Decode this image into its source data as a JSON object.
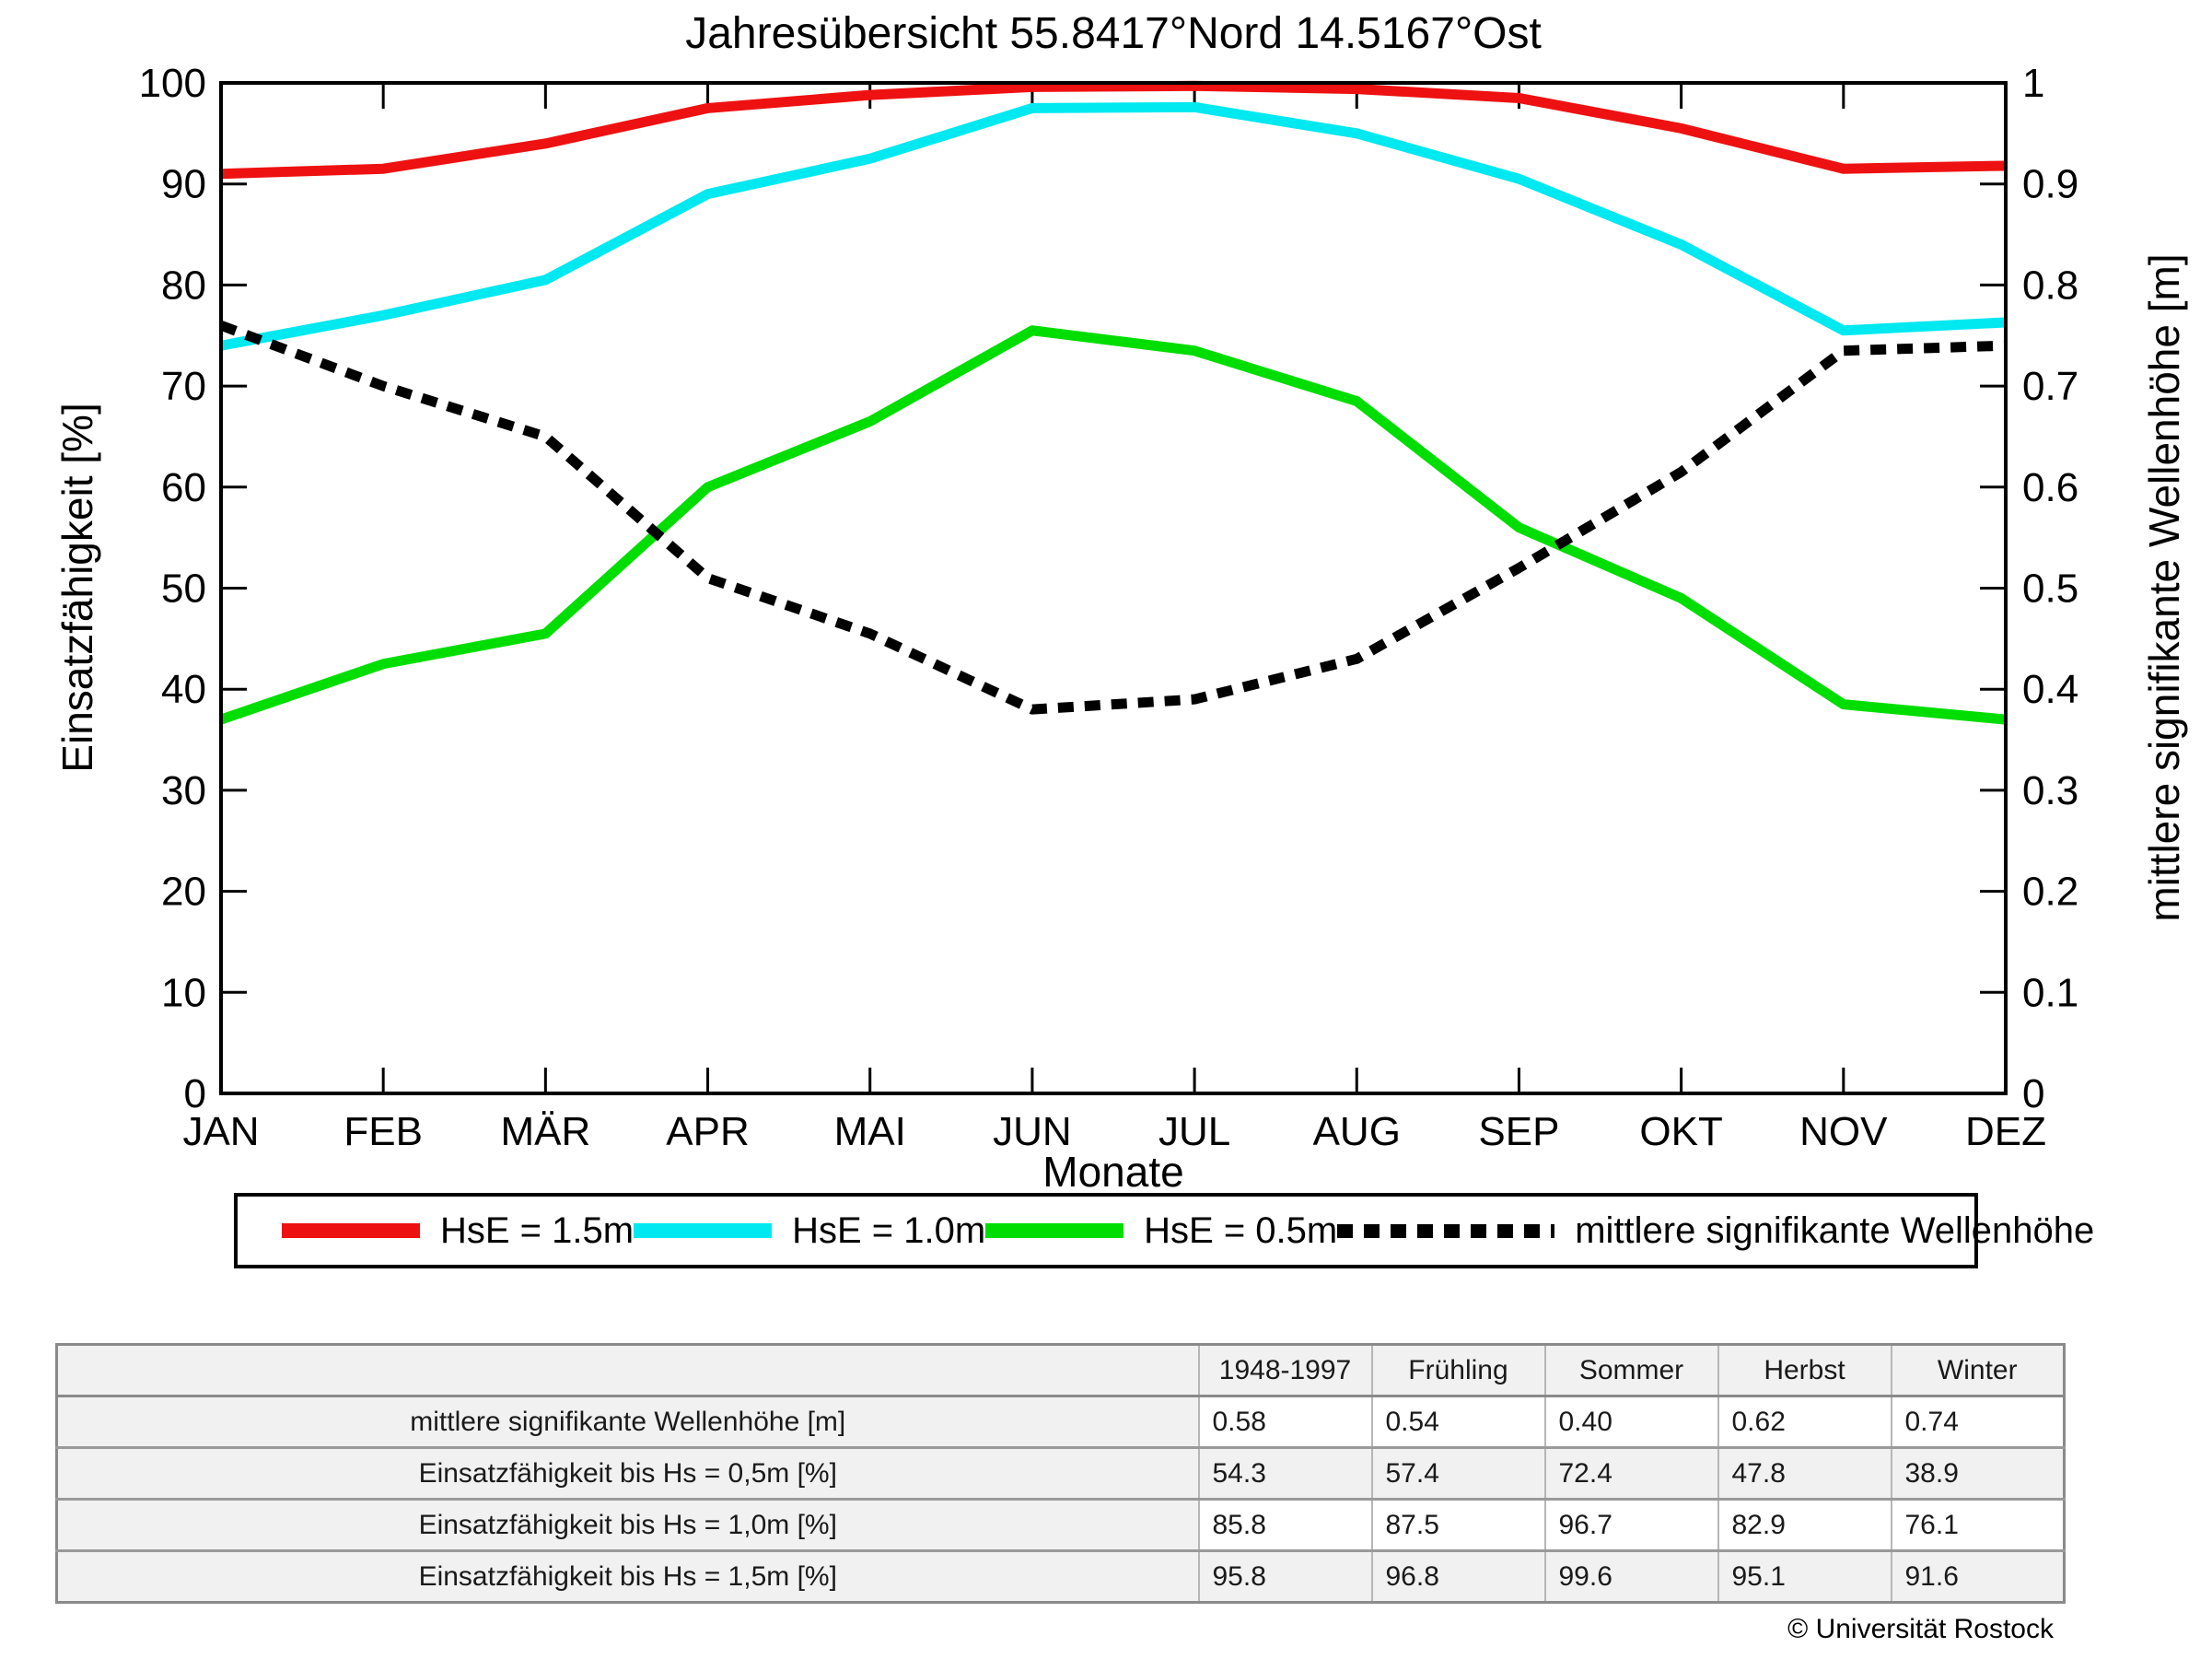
{
  "title": "Jahresübersicht  55.8417°Nord  14.5167°Ost",
  "chart_data": {
    "type": "line",
    "x_categories": [
      "JAN",
      "FEB",
      "MÄR",
      "APR",
      "MAI",
      "JUN",
      "JUL",
      "AUG",
      "SEP",
      "OKT",
      "NOV",
      "DEZ"
    ],
    "xlabel": "Monate",
    "ylabel_left": "Einsatzfähigkeit [%]",
    "ylabel_right": "mittlere signifikante Wellenhöhe [m]",
    "ylim_left": [
      0,
      100
    ],
    "ylim_right": [
      0,
      1
    ],
    "yticks_left": [
      0,
      10,
      20,
      30,
      40,
      50,
      60,
      70,
      80,
      90,
      100
    ],
    "yticks_right": [
      0,
      0.1,
      0.2,
      0.3,
      0.4,
      0.5,
      0.6,
      0.7,
      0.8,
      0.9,
      1
    ],
    "grid": false,
    "legend_position": "bottom",
    "series": [
      {
        "name": "HsE = 1.5m",
        "color": "#ee1111",
        "axis": "left",
        "style": "solid",
        "values": [
          91,
          91.5,
          94,
          97.5,
          98.8,
          99.6,
          99.7,
          99.4,
          98.5,
          95.5,
          91.5,
          91.8
        ]
      },
      {
        "name": "HsE = 1.0m",
        "color": "#00e8f0",
        "axis": "left",
        "style": "solid",
        "values": [
          74,
          77,
          80.5,
          89,
          92.5,
          97.5,
          97.6,
          95,
          90.5,
          84,
          75.5,
          76.3
        ]
      },
      {
        "name": "HsE = 0.5m",
        "color": "#00dd00",
        "axis": "left",
        "style": "solid",
        "values": [
          37,
          42.5,
          45.5,
          60,
          66.5,
          75.5,
          73.5,
          68.5,
          56,
          49,
          38.5,
          37
        ]
      },
      {
        "name": "mittlere signifikante Wellenhöhe",
        "color": "#000000",
        "axis": "right",
        "style": "dotted",
        "values": [
          0.76,
          0.7,
          0.65,
          0.51,
          0.455,
          0.38,
          0.39,
          0.43,
          0.52,
          0.615,
          0.735,
          0.74
        ]
      }
    ]
  },
  "table": {
    "col_headers": [
      "",
      "1948-1997",
      "Frühling",
      "Sommer",
      "Herbst",
      "Winter"
    ],
    "rows": [
      {
        "label": "mittlere signifikante Wellenhöhe [m]",
        "values": [
          "0.58",
          "0.54",
          "0.40",
          "0.62",
          "0.74"
        ]
      },
      {
        "label": "Einsatzfähigkeit bis Hs = 0,5m [%]",
        "values": [
          "54.3",
          "57.4",
          "72.4",
          "47.8",
          "38.9"
        ]
      },
      {
        "label": "Einsatzfähigkeit bis Hs = 1,0m [%]",
        "values": [
          "85.8",
          "87.5",
          "96.7",
          "82.9",
          "76.1"
        ]
      },
      {
        "label": "Einsatzfähigkeit bis Hs = 1,5m [%]",
        "values": [
          "95.8",
          "96.8",
          "99.6",
          "95.1",
          "91.6"
        ]
      }
    ]
  },
  "footer": {
    "copyright": "© Universität Rostock"
  }
}
